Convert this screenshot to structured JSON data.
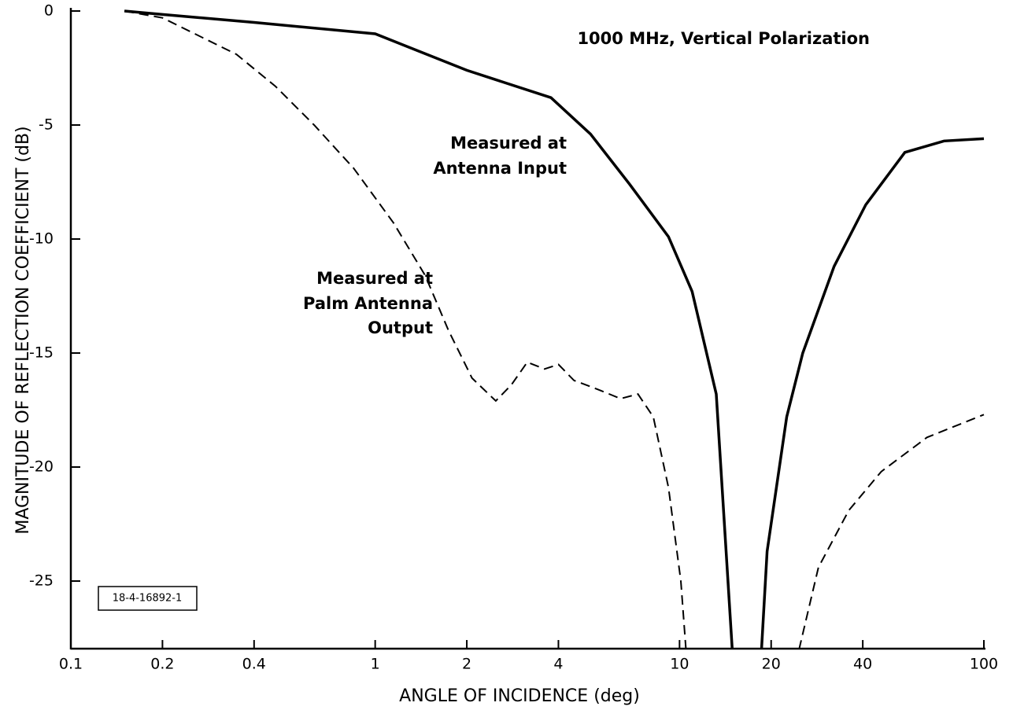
{
  "chart_data": {
    "type": "line",
    "xlabel": "ANGLE OF INCIDENCE (deg)",
    "ylabel": "MAGNITUDE OF REFLECTION COEFFICIENT (dB)",
    "xscale": "log",
    "xlim": [
      0.1,
      100
    ],
    "xticks": [
      0.1,
      0.2,
      0.4,
      1,
      2,
      4,
      10,
      20,
      40,
      100
    ],
    "ylim": [
      -28,
      0
    ],
    "yticks": [
      0,
      -5,
      -10,
      -15,
      -20,
      -25
    ],
    "annotations": [
      "1000 MHz, Vertical Polarization",
      "Measured at",
      "Antenna Input",
      "Measured at",
      "Palm Antenna",
      "Output",
      "18-4-16892-1"
    ],
    "series": [
      {
        "color": "#000000",
        "dash": false,
        "x": [
          0.15,
          0.2,
          0.4,
          1,
          2,
          3.78,
          5.1,
          6.86,
          9.2,
          11.0,
          13.2,
          14.9,
          17,
          18.6,
          19.4,
          22.5,
          25.4,
          32.2,
          40.9,
          55,
          74,
          100
        ],
        "values": [
          0,
          -0.15,
          -0.5,
          -1,
          -2.6,
          -3.8,
          -5.4,
          -7.6,
          -9.9,
          -12.3,
          -16.8,
          -28,
          null,
          -28,
          -23.7,
          -17.8,
          -15,
          -11.2,
          -8.5,
          -6.2,
          -5.7,
          -5.6
        ]
      },
      {
        "color": "#000000",
        "dash": true,
        "x": [
          0.15,
          0.2,
          0.35,
          0.47,
          0.63,
          0.85,
          1.15,
          1.46,
          1.74,
          2.08,
          2.49,
          2.8,
          3.16,
          3.6,
          4.0,
          4.5,
          5.4,
          6.4,
          7.3,
          8.2,
          9.2,
          10.1,
          10.5,
          17,
          24.7,
          28.6,
          36,
          46,
          65,
          100
        ],
        "values": [
          0,
          -0.3,
          -1.9,
          -3.3,
          -5.0,
          -6.9,
          -9.3,
          -11.6,
          -14,
          -16.1,
          -17.1,
          -16.4,
          -15.4,
          -15.7,
          -15.5,
          -16.2,
          -16.6,
          -17.0,
          -16.8,
          -17.8,
          -20.9,
          -25,
          -28,
          null,
          -28,
          -24.4,
          -21.9,
          -20.2,
          -18.7,
          -17.7
        ]
      }
    ]
  }
}
